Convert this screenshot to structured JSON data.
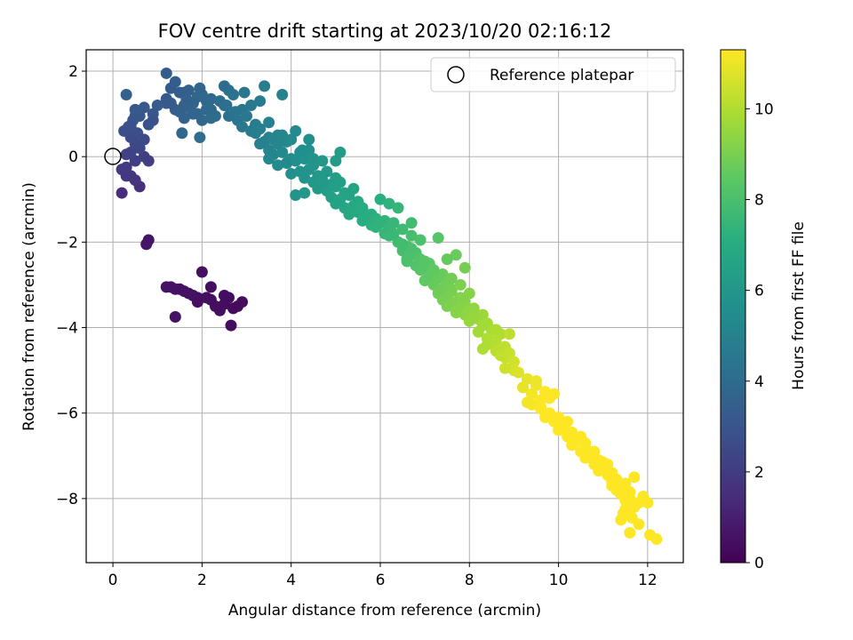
{
  "chart_data": {
    "type": "scatter",
    "title": "FOV centre drift starting at 2023/10/20 02:16:12",
    "xlabel": "Angular distance from reference (arcmin)",
    "ylabel": "Rotation from reference (arcmin)",
    "xlim": [
      -0.6,
      12.8
    ],
    "ylim": [
      -9.5,
      2.5
    ],
    "xticks": [
      0,
      2,
      4,
      6,
      8,
      10,
      12
    ],
    "xtick_labels": [
      "0",
      "2",
      "4",
      "6",
      "8",
      "10",
      "12"
    ],
    "yticks": [
      2,
      0,
      -2,
      -4,
      -6,
      -8
    ],
    "ytick_labels": [
      "2",
      "0",
      "−2",
      "−4",
      "−6",
      "−8"
    ],
    "grid": true,
    "legend": {
      "placement": "top-right",
      "entries": [
        "Reference platepar"
      ]
    },
    "reference_point": {
      "x": 0,
      "y": 0
    },
    "colorbar": {
      "label": "Hours from first FF file",
      "min": 0,
      "max": 11.3,
      "ticks": [
        0,
        2,
        4,
        6,
        8,
        10
      ],
      "tick_labels": [
        "0",
        "2",
        "4",
        "6",
        "8",
        "10"
      ],
      "colormap": "viridis",
      "colors": [
        "#440154",
        "#472c7a",
        "#3b518b",
        "#2c718e",
        "#21908d",
        "#27ad81",
        "#5cc863",
        "#aadc32",
        "#fde725"
      ]
    },
    "x": [
      1.3,
      1.5,
      1.7,
      1.9,
      2.1,
      2.3,
      2.5,
      2.7,
      2.9,
      1.4,
      1.8,
      2.2,
      2.6,
      2.0,
      2.4,
      2.8,
      1.6,
      2.2,
      2.5,
      2.65,
      1.2,
      1.4,
      1.9,
      0.8,
      0.75,
      0.2,
      0.3,
      0.2,
      0.6,
      0.5,
      0.4,
      0.3,
      0.5,
      0.7,
      0.8,
      0.4,
      0.6,
      0.5,
      0.3,
      0.4,
      0.7,
      0.55,
      0.35,
      0.25,
      0.45,
      0.5,
      0.9,
      0.7,
      1.0,
      0.9,
      0.3,
      0.6,
      0.5,
      0.4,
      0.8,
      1.2,
      1.3,
      1.5,
      1.7,
      1.9,
      2.1,
      1.4,
      1.6,
      1.8,
      2.0,
      2.2,
      2.4,
      1.3,
      1.5,
      1.7,
      1.9,
      2.1,
      2.3,
      2.5,
      1.6,
      1.8,
      2.0,
      2.2,
      2.4,
      2.6,
      1.2,
      1.4,
      1.65,
      2.55,
      2.75,
      2.9,
      3.1,
      3.3,
      2.8,
      3.0,
      3.2,
      2.9,
      3.1,
      3.3,
      3.5,
      3.7,
      2.7,
      2.6,
      2.2,
      2.95,
      3.4,
      3.8,
      1.2,
      1.6,
      1.95,
      2.5,
      1.55,
      1.95,
      3.2,
      3.5,
      3.4,
      3.6,
      3.8,
      3.5,
      3.7,
      3.9,
      4.0,
      3.6,
      3.8,
      4.0,
      4.2,
      4.4,
      3.9,
      4.1,
      4.3,
      4.5,
      4.7,
      4.0,
      4.2,
      4.4,
      4.6,
      4.8,
      5.0,
      4.3,
      4.5,
      4.7,
      4.9,
      5.1,
      4.6,
      4.8,
      5.0,
      5.2,
      5.4,
      4.9,
      5.1,
      5.3,
      5.5,
      5.0,
      5.2,
      5.4,
      5.6,
      5.8,
      5.5,
      5.7,
      5.9,
      6.1,
      5.6,
      5.8,
      6.0,
      6.2,
      5.9,
      6.1,
      4.5,
      5.0,
      5.1,
      4.4,
      3.5,
      3.9,
      4.1,
      4.25,
      6.0,
      6.2,
      6.4,
      6.3,
      6.5,
      6.7,
      6.4,
      6.6,
      6.8,
      6.5,
      6.7,
      6.9,
      7.1,
      6.6,
      6.8,
      7.0,
      7.2,
      7.4,
      6.9,
      7.1,
      7.3,
      7.5,
      7.0,
      7.2,
      7.4,
      7.6,
      7.3,
      7.5,
      7.7,
      7.4,
      7.6,
      7.8,
      7.5,
      7.7,
      7.9,
      6.7,
      7.3,
      7.7,
      6.9,
      7.5,
      7.9,
      6.3,
      6.7,
      7.0,
      7.6,
      7.6,
      7.8,
      8.0,
      7.9,
      8.1,
      8.3,
      8.0,
      8.2,
      8.4,
      8.1,
      8.3,
      8.5,
      8.7,
      8.2,
      8.4,
      8.6,
      8.8,
      8.5,
      8.7,
      8.9,
      8.6,
      8.8,
      9.0,
      7.7,
      8.0,
      8.3,
      8.6,
      8.9,
      8.4,
      8.3,
      8.7,
      9.0,
      9.3,
      9.5,
      9.2,
      9.4,
      9.6,
      9.8,
      9.4,
      9.6,
      9.8,
      10.0,
      10.2,
      9.7,
      9.9,
      10.1,
      10.3,
      10.5,
      10.0,
      10.2,
      10.4,
      10.6,
      10.8,
      10.3,
      10.5,
      10.7,
      10.9,
      11.1,
      10.6,
      10.8,
      11.0,
      11.2,
      10.9,
      11.1,
      11.3,
      11.5,
      11.2,
      11.4,
      11.6,
      11.4,
      11.6,
      11.8,
      11.5,
      11.7,
      11.3,
      11.45,
      11.65,
      11.5,
      11.4,
      11.6,
      11.7,
      11.9,
      12.0,
      11.8,
      11.6,
      12.05,
      12.2,
      9.9,
      10.1,
      9.3,
      10.7,
      11.0,
      9.5,
      9.7,
      10.4,
      10.9,
      11.1,
      5.3,
      5.6,
      6.2,
      6.5,
      4.1,
      4.3,
      4.7,
      6.6,
      7.2,
      7.8,
      3.3,
      3.7,
      8.8,
      9.1,
      9.6,
      10.6,
      11.2,
      11.3
    ],
    "y": [
      -3.05,
      -3.1,
      -3.2,
      -3.4,
      -3.3,
      -3.5,
      -3.45,
      -3.55,
      -3.4,
      -3.75,
      -3.25,
      -3.05,
      -3.3,
      -2.7,
      -3.6,
      -3.5,
      -3.15,
      -3.35,
      -3.25,
      -3.95,
      -3.05,
      -3.1,
      -3.3,
      -1.95,
      -2.05,
      -0.85,
      -0.45,
      -0.3,
      -0.7,
      -0.55,
      -0.45,
      -0.25,
      -0.1,
      0.0,
      -0.1,
      0.1,
      0.2,
      0.3,
      0.05,
      0.45,
      0.4,
      0.55,
      0.7,
      0.6,
      0.85,
      0.95,
      1.0,
      1.15,
      1.2,
      0.85,
      1.45,
      0.95,
      1.1,
      0.7,
      0.75,
      1.35,
      1.6,
      1.5,
      1.55,
      1.4,
      1.3,
      1.1,
      1.2,
      1.25,
      1.45,
      1.35,
      1.3,
      1.25,
      1.05,
      1.15,
      1.0,
      1.1,
      0.95,
      1.2,
      0.9,
      1.0,
      0.85,
      1.1,
      1.3,
      1.55,
      1.95,
      1.75,
      1.35,
      1.2,
      1.05,
      1.1,
      1.2,
      1.3,
      0.85,
      0.95,
      0.75,
      0.7,
      0.6,
      0.65,
      0.8,
      0.5,
      1.45,
      0.95,
      0.9,
      1.5,
      1.65,
      1.45,
      1.25,
      1.5,
      1.6,
      1.65,
      0.55,
      0.45,
      0.55,
      0.45,
      0.35,
      0.4,
      0.5,
      0.15,
      0.3,
      0.35,
      0.4,
      0.05,
      0.1,
      -0.05,
      0.1,
      0.15,
      -0.15,
      -0.1,
      -0.05,
      -0.2,
      -0.1,
      -0.4,
      -0.35,
      -0.3,
      -0.45,
      -0.35,
      -0.5,
      -0.5,
      -0.6,
      -0.55,
      -0.65,
      -0.6,
      -0.75,
      -0.8,
      -0.7,
      -0.85,
      -0.75,
      -0.95,
      -1.0,
      -0.9,
      -1.05,
      -1.1,
      -1.2,
      -1.15,
      -1.25,
      -1.35,
      -1.3,
      -1.4,
      -1.45,
      -1.5,
      -1.5,
      -1.6,
      -1.55,
      -1.7,
      -1.65,
      -1.8,
      -0.05,
      -0.1,
      0.1,
      0.4,
      -0.05,
      -0.15,
      0.6,
      0.15,
      -1.0,
      -1.1,
      -1.2,
      -1.55,
      -1.7,
      -1.85,
      -2.0,
      -2.1,
      -2.25,
      -2.2,
      -2.3,
      -2.4,
      -2.5,
      -2.45,
      -2.55,
      -2.6,
      -2.7,
      -2.75,
      -2.65,
      -2.8,
      -2.85,
      -2.95,
      -2.9,
      -3.0,
      -3.1,
      -3.15,
      -3.2,
      -3.3,
      -3.4,
      -3.35,
      -3.45,
      -3.55,
      -3.5,
      -3.6,
      -3.7,
      -1.55,
      -1.9,
      -2.3,
      -1.95,
      -2.4,
      -2.6,
      -1.8,
      -2.15,
      -2.45,
      -2.85,
      -3.1,
      -3.0,
      -3.2,
      -3.4,
      -3.55,
      -3.7,
      -3.6,
      -3.8,
      -3.9,
      -3.75,
      -3.95,
      -4.05,
      -4.15,
      -4.1,
      -4.25,
      -4.35,
      -4.45,
      -4.3,
      -4.5,
      -4.6,
      -4.55,
      -4.7,
      -4.8,
      -3.65,
      -3.85,
      -3.95,
      -4.05,
      -4.15,
      -4.4,
      -4.5,
      -4.65,
      -5.0,
      -5.2,
      -5.35,
      -5.4,
      -5.55,
      -5.7,
      -5.65,
      -5.8,
      -5.9,
      -6.0,
      -6.1,
      -6.2,
      -6.1,
      -6.2,
      -6.35,
      -6.45,
      -6.55,
      -6.4,
      -6.55,
      -6.65,
      -6.8,
      -6.9,
      -6.75,
      -6.9,
      -7.0,
      -7.1,
      -7.2,
      -7.05,
      -7.2,
      -7.3,
      -7.4,
      -7.35,
      -7.45,
      -7.55,
      -7.65,
      -7.6,
      -7.75,
      -7.85,
      -7.9,
      -8.0,
      -8.1,
      -8.05,
      -8.2,
      -7.8,
      -8.35,
      -8.45,
      -8.25,
      -8.5,
      -8.3,
      -7.5,
      -7.95,
      -8.1,
      -8.6,
      -8.8,
      -8.85,
      -8.95,
      -5.55,
      -6.25,
      -5.75,
      -6.95,
      -7.15,
      -5.25,
      -5.5,
      -6.6,
      -7.25,
      -7.35,
      -1.35,
      -1.2,
      -1.85,
      -2.05,
      -0.9,
      -0.85,
      -0.6,
      -2.4,
      -2.65,
      -3.3,
      0.3,
      -0.2,
      -4.95,
      -5.05,
      -5.85,
      -6.7,
      -7.7,
      -7.55
    ]
  }
}
